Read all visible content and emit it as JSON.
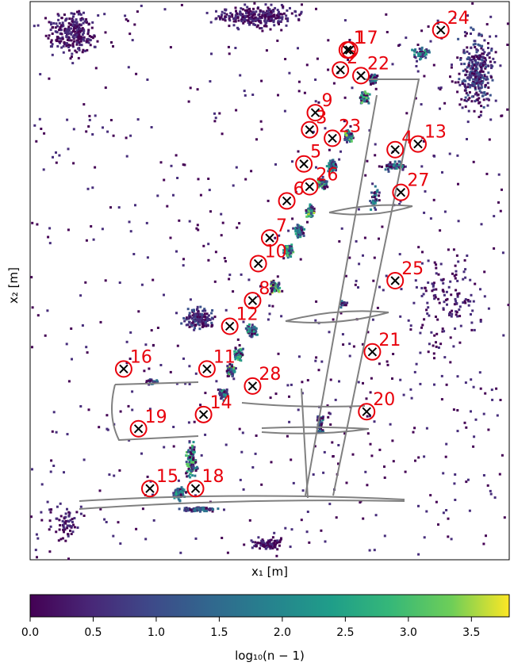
{
  "chart_data": {
    "type": "heatmap",
    "xlabel": "x₁ [m]",
    "ylabel": "x₂ [m]",
    "x_tick_labels": [],
    "y_tick_labels": [],
    "colorscale": "viridis",
    "colorbar": {
      "label": "log₁₀(n − 1)",
      "range": [
        0.0,
        3.8
      ],
      "ticks": [
        0.0,
        0.5,
        1.0,
        1.5,
        2.0,
        2.5,
        3.0,
        3.5
      ],
      "tick_labels": [
        "0.0",
        "0.5",
        "1.0",
        "1.5",
        "2.0",
        "2.5",
        "3.0",
        "3.5"
      ]
    },
    "clusters": [
      {
        "id": "1",
        "label": "1",
        "x": 2.78,
        "y": 8.95
      },
      {
        "id": "2",
        "label": "2",
        "x": 2.72,
        "y": 8.6
      },
      {
        "id": "3",
        "label": "3",
        "x": 2.45,
        "y": 7.55
      },
      {
        "id": "4",
        "label": "4",
        "x": 3.2,
        "y": 7.2
      },
      {
        "id": "5",
        "label": "5",
        "x": 2.4,
        "y": 6.95
      },
      {
        "id": "6",
        "label": "6",
        "x": 2.25,
        "y": 6.3
      },
      {
        "id": "7",
        "label": "7",
        "x": 2.1,
        "y": 5.65
      },
      {
        "id": "8",
        "label": "8",
        "x": 1.95,
        "y": 4.55
      },
      {
        "id": "9",
        "label": "9",
        "x": 2.5,
        "y": 7.85
      },
      {
        "id": "10",
        "label": "10",
        "x": 2.0,
        "y": 5.2
      },
      {
        "id": "11",
        "label": "11",
        "x": 1.55,
        "y": 3.35
      },
      {
        "id": "12",
        "label": "12",
        "x": 1.75,
        "y": 4.1
      },
      {
        "id": "13",
        "label": "13",
        "x": 3.4,
        "y": 7.3
      },
      {
        "id": "14",
        "label": "14",
        "x": 1.52,
        "y": 2.55
      },
      {
        "id": "15",
        "label": "15",
        "x": 1.05,
        "y": 1.25
      },
      {
        "id": "16",
        "label": "16",
        "x": 0.82,
        "y": 3.35
      },
      {
        "id": "17",
        "label": "17",
        "x": 2.8,
        "y": 8.95
      },
      {
        "id": "18",
        "label": "18",
        "x": 1.45,
        "y": 1.25
      },
      {
        "id": "19",
        "label": "19",
        "x": 0.95,
        "y": 2.3
      },
      {
        "id": "20",
        "label": "20",
        "x": 2.95,
        "y": 2.6
      },
      {
        "id": "21",
        "label": "21",
        "x": 3.0,
        "y": 3.65
      },
      {
        "id": "22",
        "label": "22",
        "x": 2.9,
        "y": 8.5
      },
      {
        "id": "23",
        "label": "23",
        "x": 2.65,
        "y": 7.4
      },
      {
        "id": "24",
        "label": "24",
        "x": 3.6,
        "y": 9.3
      },
      {
        "id": "25",
        "label": "25",
        "x": 3.2,
        "y": 4.9
      },
      {
        "id": "26",
        "label": "26",
        "x": 2.45,
        "y": 6.55
      },
      {
        "id": "27",
        "label": "27",
        "x": 3.25,
        "y": 6.45
      },
      {
        "id": "28",
        "label": "28",
        "x": 1.95,
        "y": 3.05
      }
    ]
  }
}
